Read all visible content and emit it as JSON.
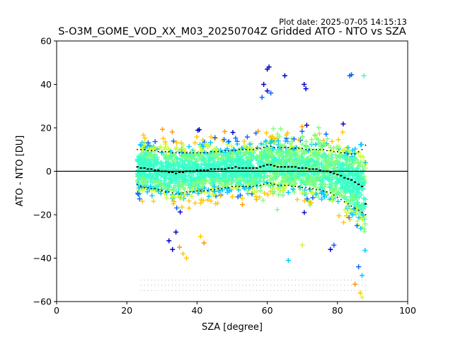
{
  "plot_date": "Plot date: 2025-07-05 14:15:13",
  "chart_data": {
    "type": "scatter",
    "title": "S-O3M_GOME_VOD_XX_M03_20250704Z Gridded ATO - NTO vs SZA",
    "xlabel": "SZA [degree]",
    "ylabel": "ATO - NTO [DU]",
    "xlim": [
      0,
      100
    ],
    "ylim": [
      -60,
      60
    ],
    "xticks": [
      0,
      20,
      40,
      60,
      80,
      100
    ],
    "yticks": [
      -60,
      -40,
      -20,
      0,
      20,
      40,
      60
    ],
    "grid": false,
    "legend": "none",
    "reference_line_y": 0,
    "colors": [
      "#0000cd",
      "#0a64ff",
      "#00c8ff",
      "#3cffc8",
      "#7dff7d",
      "#c8ff32",
      "#ffc800",
      "#ff9600"
    ],
    "sza_bins": [
      23,
      24,
      25,
      26,
      27,
      28,
      29,
      30,
      31,
      32,
      33,
      34,
      35,
      36,
      37,
      38,
      39,
      40,
      41,
      42,
      43,
      44,
      45,
      46,
      47,
      48,
      49,
      50,
      51,
      52,
      53,
      54,
      55,
      56,
      57,
      58,
      59,
      60,
      61,
      62,
      63,
      64,
      65,
      66,
      67,
      68,
      69,
      70,
      71,
      72,
      73,
      74,
      75,
      76,
      77,
      78,
      79,
      80,
      81,
      82,
      83,
      84,
      85,
      86,
      87,
      88
    ],
    "mean": [
      2,
      1.5,
      1.5,
      1,
      1,
      0.5,
      0.5,
      0,
      0,
      -0.5,
      -0.5,
      -1,
      -0.5,
      -0.5,
      0,
      0,
      0,
      0.5,
      0.5,
      0.5,
      0.5,
      1,
      1,
      1,
      1,
      1,
      1.5,
      1.5,
      2,
      1.5,
      1.5,
      1.5,
      1.5,
      1.5,
      1.5,
      2,
      2.5,
      3,
      3,
      2.5,
      2,
      2,
      2,
      2,
      2,
      2,
      1.5,
      1.5,
      1.5,
      1,
      1,
      1,
      0.5,
      0,
      0,
      -0.5,
      -1,
      -1.5,
      -2,
      -3,
      -3.5,
      -4,
      -5,
      -6,
      -7,
      -15
    ],
    "upper": [
      10,
      10,
      10,
      9.5,
      9.5,
      9.5,
      9,
      9,
      9,
      9,
      8.5,
      8.5,
      8.5,
      8.5,
      8.5,
      8.5,
      8.5,
      8.5,
      8.5,
      8.5,
      8.5,
      9,
      9,
      9,
      9,
      9.5,
      9.5,
      9.5,
      9.5,
      10,
      10,
      10,
      10,
      10,
      10.5,
      10.5,
      11,
      11.5,
      11.5,
      11,
      11,
      11,
      11,
      11,
      10.5,
      10.5,
      10.5,
      10.5,
      10,
      10,
      10,
      10,
      10,
      10,
      9.5,
      9.5,
      9,
      9,
      8.5,
      8.5,
      8,
      8,
      8,
      9,
      10,
      12
    ],
    "lower": [
      -6,
      -7,
      -7.5,
      -7.5,
      -8,
      -8,
      -8.5,
      -9,
      -9.5,
      -9.5,
      -10,
      -10.5,
      -10.5,
      -10,
      -9.5,
      -9.5,
      -9.5,
      -9,
      -9,
      -9,
      -9,
      -8.5,
      -8.5,
      -8,
      -8,
      -7.5,
      -7.5,
      -7,
      -7,
      -7,
      -7,
      -7,
      -7,
      -7,
      -6.5,
      -6.5,
      -6,
      -5.5,
      -5.5,
      -6,
      -6.5,
      -6.5,
      -6.5,
      -6.5,
      -7,
      -7,
      -7,
      -7.5,
      -7.5,
      -8,
      -8,
      -8.5,
      -8.5,
      -9,
      -9.5,
      -10,
      -11,
      -12,
      -13,
      -14,
      -15,
      -16,
      -17,
      -18,
      -19,
      -20
    ],
    "count_rows_y": [
      -50.5,
      -53,
      -55.5
    ]
  }
}
